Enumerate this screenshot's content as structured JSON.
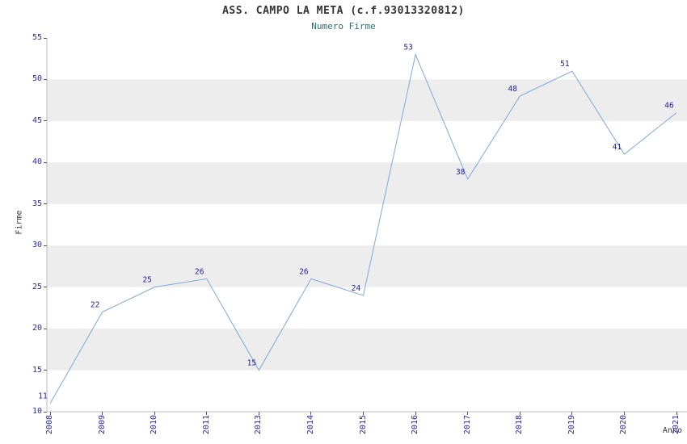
{
  "title": "ASS. CAMPO LA META (c.f.93013320812)",
  "subtitle": "Numero Firme",
  "chart_data": {
    "type": "line",
    "title": "ASS. CAMPO LA META (c.f.93013320812)",
    "subtitle": "Numero Firme",
    "categories": [
      "2008",
      "2009",
      "2010",
      "2011",
      "2013",
      "2014",
      "2015",
      "2016",
      "2017",
      "2018",
      "2019",
      "2020",
      "2021"
    ],
    "values": [
      11,
      22,
      25,
      26,
      15,
      26,
      24,
      53,
      38,
      48,
      51,
      41,
      46
    ],
    "xlabel": "Anno",
    "ylabel": "Firme",
    "ylim": [
      10,
      55
    ],
    "ytick_step": 5,
    "grid": "alternating-horizontal-bands",
    "legend": "none"
  },
  "colors": {
    "line": "#7ea8dc",
    "band": "#ededed",
    "axis_line": "#bbbbbb",
    "tick_label": "#2828b0",
    "data_label": "#1e1e96",
    "title": "#333333",
    "subtitle": "#2f6f6f",
    "axis_title": "#333333"
  }
}
